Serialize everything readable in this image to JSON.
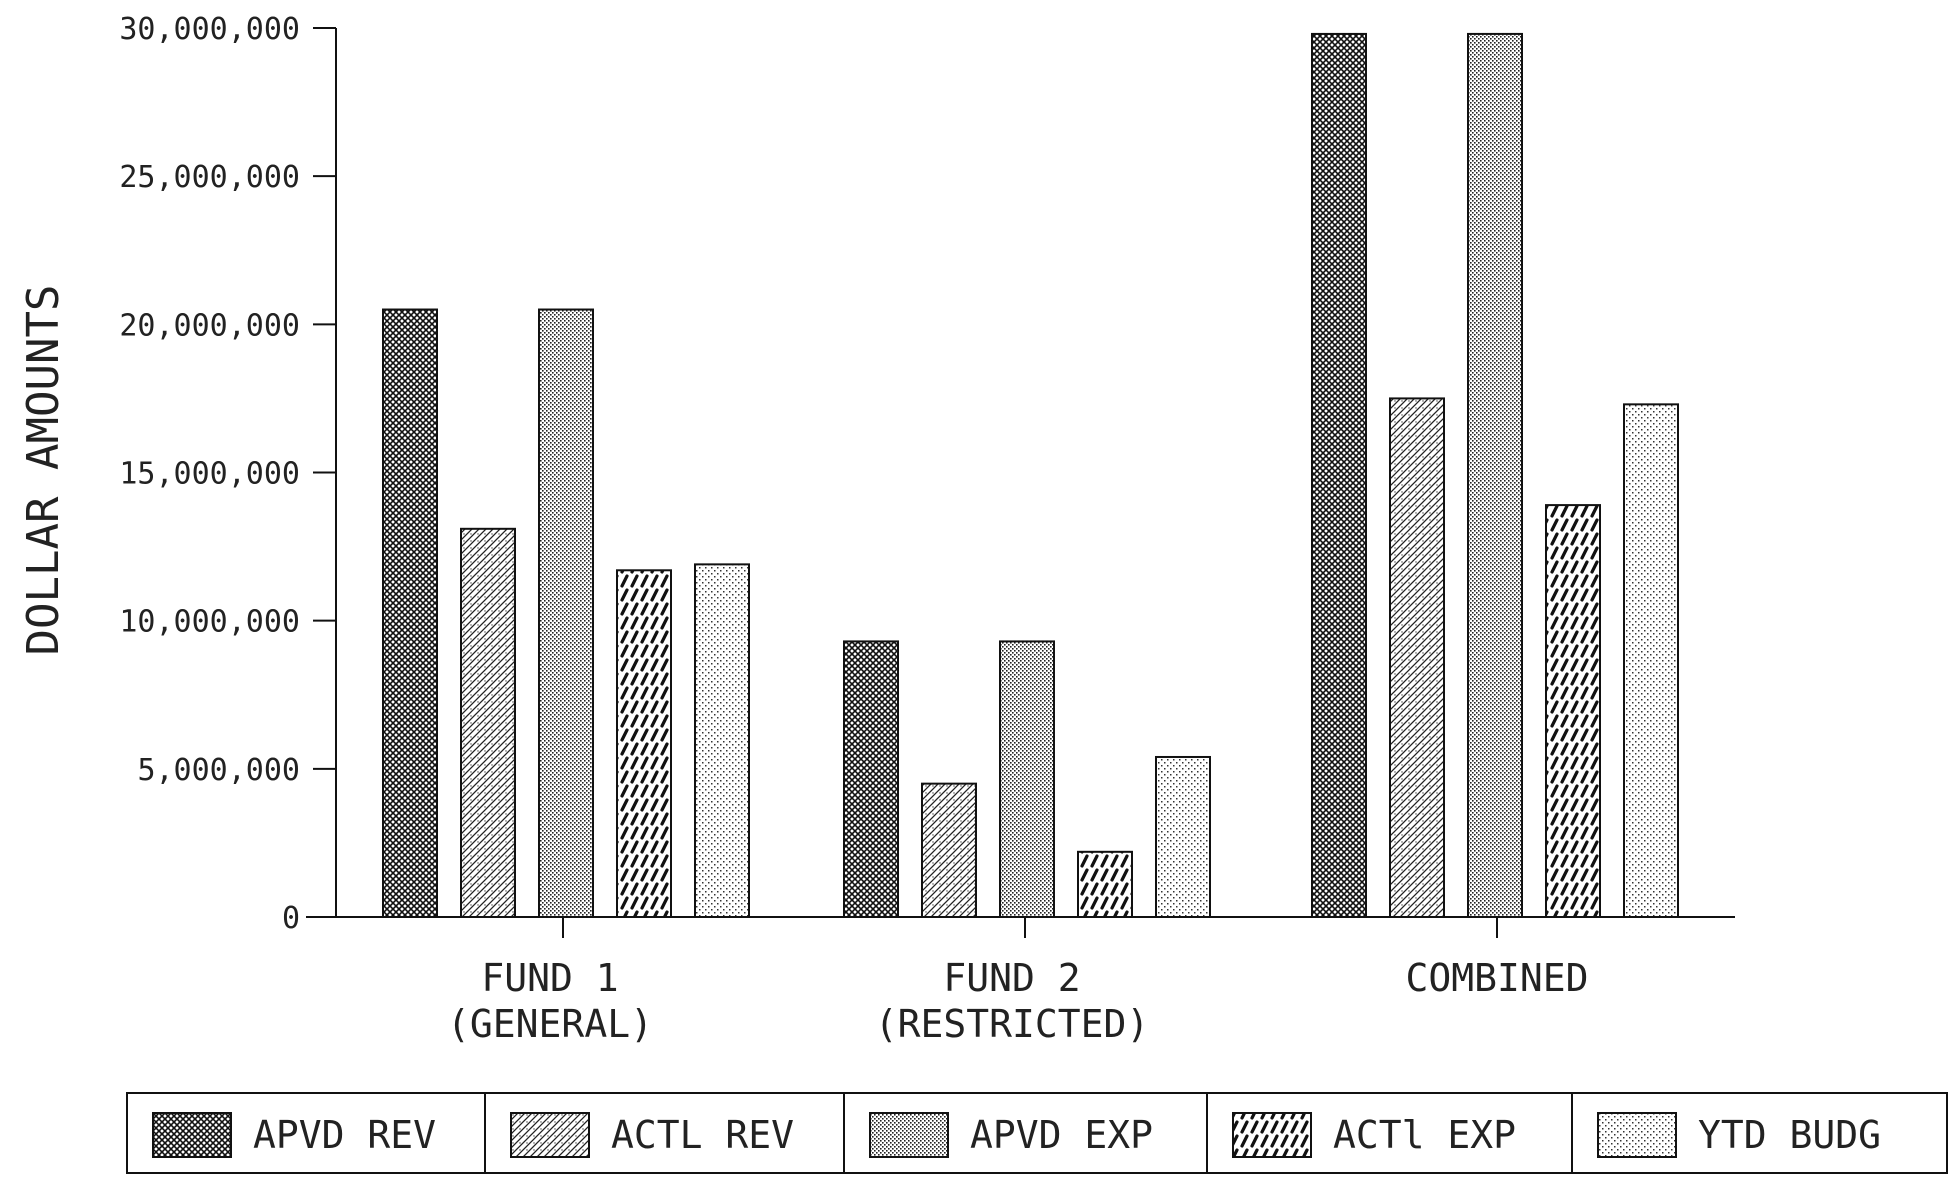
{
  "chart_data": {
    "type": "bar",
    "title": "",
    "xlabel": "",
    "ylabel": "DOLLAR AMOUNTS",
    "ylim": [
      0,
      30000000
    ],
    "yticks": [
      {
        "value": 0,
        "label": "0"
      },
      {
        "value": 5000000,
        "label": "5,000,000"
      },
      {
        "value": 10000000,
        "label": "10,000,000"
      },
      {
        "value": 15000000,
        "label": "15,000,000"
      },
      {
        "value": 20000000,
        "label": "20,000,000"
      },
      {
        "value": 25000000,
        "label": "25,000,000"
      },
      {
        "value": 30000000,
        "label": "30,000,000"
      }
    ],
    "categories": [
      {
        "line1": "FUND 1",
        "line2": "(GENERAL)"
      },
      {
        "line1": "FUND 2",
        "line2": "(RESTRICTED)"
      },
      {
        "line1": "COMBINED",
        "line2": ""
      }
    ],
    "series": [
      {
        "name": "APVD REV",
        "pattern": "crosshatch-dense",
        "values": [
          20500000,
          9300000,
          29800000
        ]
      },
      {
        "name": "ACTL REV",
        "pattern": "diagonal-fine",
        "values": [
          13100000,
          4500000,
          17500000
        ]
      },
      {
        "name": "APVD EXP",
        "pattern": "dots-dense",
        "values": [
          20500000,
          9300000,
          29800000
        ]
      },
      {
        "name": "ACTl EXP",
        "pattern": "diagonal-bold",
        "values": [
          11700000,
          2200000,
          13900000
        ]
      },
      {
        "name": "YTD BUDG",
        "pattern": "dots-sparse",
        "values": [
          11900000,
          5400000,
          17300000
        ]
      }
    ],
    "legend_position": "bottom",
    "grid": false
  }
}
